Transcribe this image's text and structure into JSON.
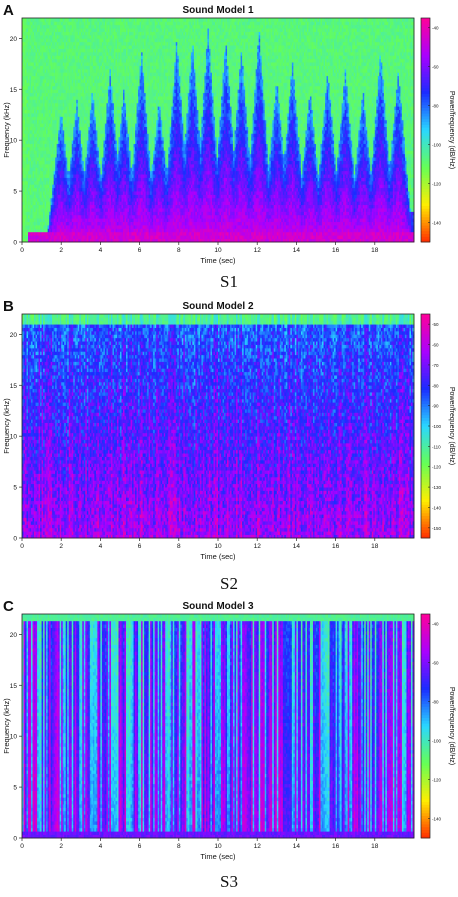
{
  "figure": {
    "panels": [
      {
        "letter": "A",
        "caption": "S1"
      },
      {
        "letter": "B",
        "caption": "S2"
      },
      {
        "letter": "C",
        "caption": "S3"
      }
    ]
  },
  "chart_data": [
    {
      "type": "heatmap",
      "title": "Sound Model 1",
      "xlabel": "Time (sec)",
      "ylabel": "Frequency (kHz)",
      "colorbar_label": "Power/frequency (dB/Hz)",
      "xlim": [
        0,
        20
      ],
      "ylim": [
        0,
        22
      ],
      "x_ticks": [
        0,
        2,
        4,
        6,
        8,
        10,
        12,
        14,
        16,
        18
      ],
      "y_ticks": [
        0,
        5,
        10,
        15,
        20
      ],
      "colorbar_ticks": [
        -40,
        -60,
        -80,
        -100,
        -120,
        -140
      ],
      "colorbar_range": [
        -150,
        -35
      ],
      "colormap": [
        "#ff2a00",
        "#ffee00",
        "#66ff55",
        "#2ad8ff",
        "#1a2cff",
        "#aa00ff",
        "#ff0099"
      ],
      "pattern": "burst bursts of broadband energy from ~1.5 s, strong low band below 1 kHz, quiet high frequencies near 22 kHz",
      "burst_times": [
        2.0,
        2.8,
        3.6,
        4.5,
        5.2,
        6.1,
        7.0,
        7.9,
        8.7,
        9.5,
        10.4,
        11.2,
        12.1,
        13.0,
        13.8,
        14.7,
        15.6,
        16.5,
        17.4,
        18.3,
        19.2
      ],
      "burst_peak_khz": [
        13,
        14,
        15,
        17,
        15,
        19,
        14,
        20,
        20,
        21,
        20,
        19,
        21,
        16,
        18,
        15,
        17,
        17,
        15,
        19,
        17
      ]
    },
    {
      "type": "heatmap",
      "title": "Sound Model 2",
      "xlabel": "Time (sec)",
      "ylabel": "Frequency (kHz)",
      "colorbar_label": "Power/frequency (dB/Hz)",
      "xlim": [
        0,
        20
      ],
      "ylim": [
        0,
        22
      ],
      "x_ticks": [
        0,
        2,
        4,
        6,
        8,
        10,
        12,
        14,
        16,
        18
      ],
      "y_ticks": [
        0,
        5,
        10,
        15,
        20
      ],
      "colorbar_ticks": [
        -50,
        -60,
        -70,
        -80,
        -90,
        -100,
        -110,
        -120,
        -130,
        -140,
        -150
      ],
      "colorbar_range": [
        -155,
        -45
      ],
      "colormap": [
        "#ff2a00",
        "#ffee00",
        "#66ff55",
        "#2ad8ff",
        "#1a2cff",
        "#aa00ff",
        "#ff0099"
      ],
      "pattern": "dense broadband noise across all frequencies with vertical streaks; strongest below 5 kHz"
    },
    {
      "type": "heatmap",
      "title": "Sound Model 3",
      "xlabel": "Time (sec)",
      "ylabel": "Frequency (kHz)",
      "colorbar_label": "Power/frequency (dB/Hz)",
      "xlim": [
        0,
        20
      ],
      "ylim": [
        0,
        22
      ],
      "x_ticks": [
        0,
        2,
        4,
        6,
        8,
        10,
        12,
        14,
        16,
        18
      ],
      "y_ticks": [
        0,
        5,
        10,
        15,
        20
      ],
      "colorbar_ticks": [
        -40,
        -60,
        -80,
        -100,
        -120,
        -140
      ],
      "colorbar_range": [
        -150,
        -35
      ],
      "colormap": [
        "#ff2a00",
        "#ffee00",
        "#66ff55",
        "#2ad8ff",
        "#1a2cff",
        "#aa00ff",
        "#ff0099"
      ],
      "pattern": "many short clicks producing thin full-band vertical lines alternating with quiet yellow-green gaps"
    }
  ]
}
